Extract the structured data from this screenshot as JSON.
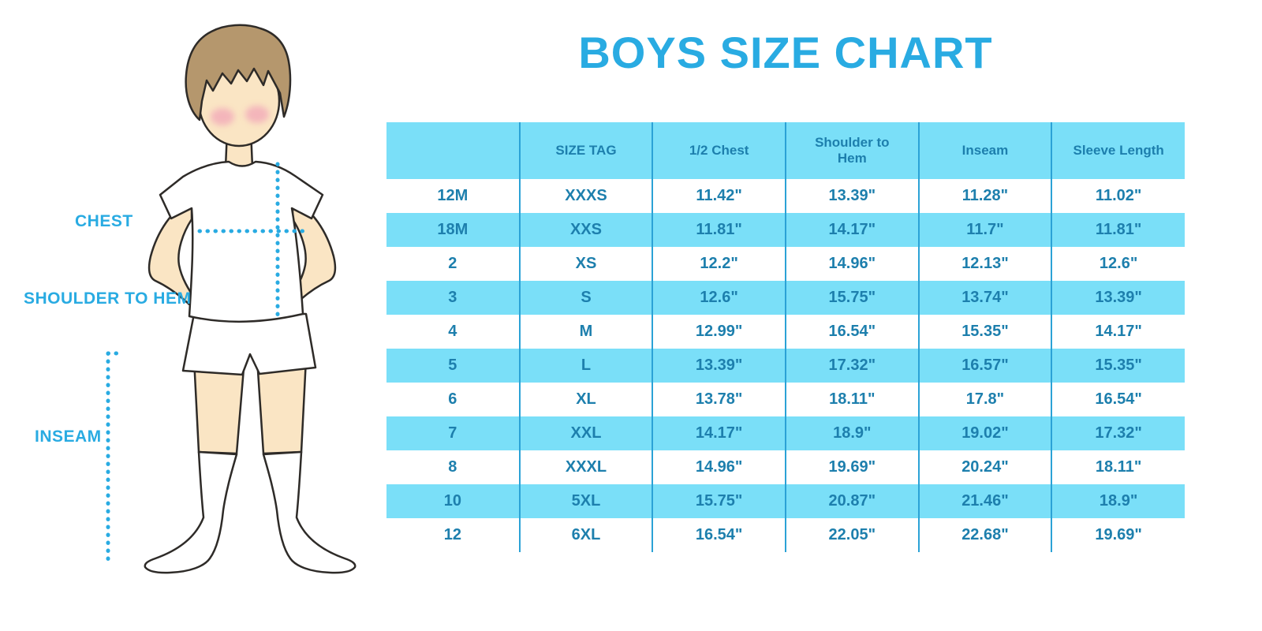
{
  "title": "BOYS SIZE CHART",
  "figure_labels": {
    "chest": "CHEST",
    "shoulder_to_hem": "SHOULDER TO HEM",
    "inseam": "INSEAM"
  },
  "chart_data": {
    "type": "table",
    "title": "BOYS SIZE CHART",
    "columns": [
      "",
      "SIZE TAG",
      "1/2 Chest",
      "Shoulder to Hem",
      "Inseam",
      "Sleeve Length"
    ],
    "rows": [
      [
        "12M",
        "XXXS",
        "11.42\"",
        "13.39\"",
        "11.28\"",
        "11.02\""
      ],
      [
        "18M",
        "XXS",
        "11.81\"",
        "14.17\"",
        "11.7\"",
        "11.81\""
      ],
      [
        "2",
        "XS",
        "12.2\"",
        "14.96\"",
        "12.13\"",
        "12.6\""
      ],
      [
        "3",
        "S",
        "12.6\"",
        "15.75\"",
        "13.74\"",
        "13.39\""
      ],
      [
        "4",
        "M",
        "12.99\"",
        "16.54\"",
        "15.35\"",
        "14.17\""
      ],
      [
        "5",
        "L",
        "13.39\"",
        "17.32\"",
        "16.57\"",
        "15.35\""
      ],
      [
        "6",
        "XL",
        "13.78\"",
        "18.11\"",
        "17.8\"",
        "16.54\""
      ],
      [
        "7",
        "XXL",
        "14.17\"",
        "18.9\"",
        "19.02\"",
        "17.32\""
      ],
      [
        "8",
        "XXXL",
        "14.96\"",
        "19.69\"",
        "20.24\"",
        "18.11\""
      ],
      [
        "10",
        "5XL",
        "15.75\"",
        "20.87\"",
        "21.46\"",
        "18.9\""
      ],
      [
        "12",
        "6XL",
        "16.54\"",
        "22.05\"",
        "22.68\"",
        "19.69\""
      ]
    ],
    "units": "inches",
    "stripe_pattern": "header and every even data row are cyan, others white",
    "legend_position": "none",
    "grid": "vertical column separators only"
  },
  "colors": {
    "accent-blue": "#29ABE2",
    "table-stripe": "#7ADFF8",
    "table-text": "#1D7FAD",
    "grid-line": "#2BA2D6",
    "skin": "#FAE5C4",
    "hair": "#B5976D",
    "blush": "#F2A6B8",
    "outline": "#2E2B28"
  }
}
